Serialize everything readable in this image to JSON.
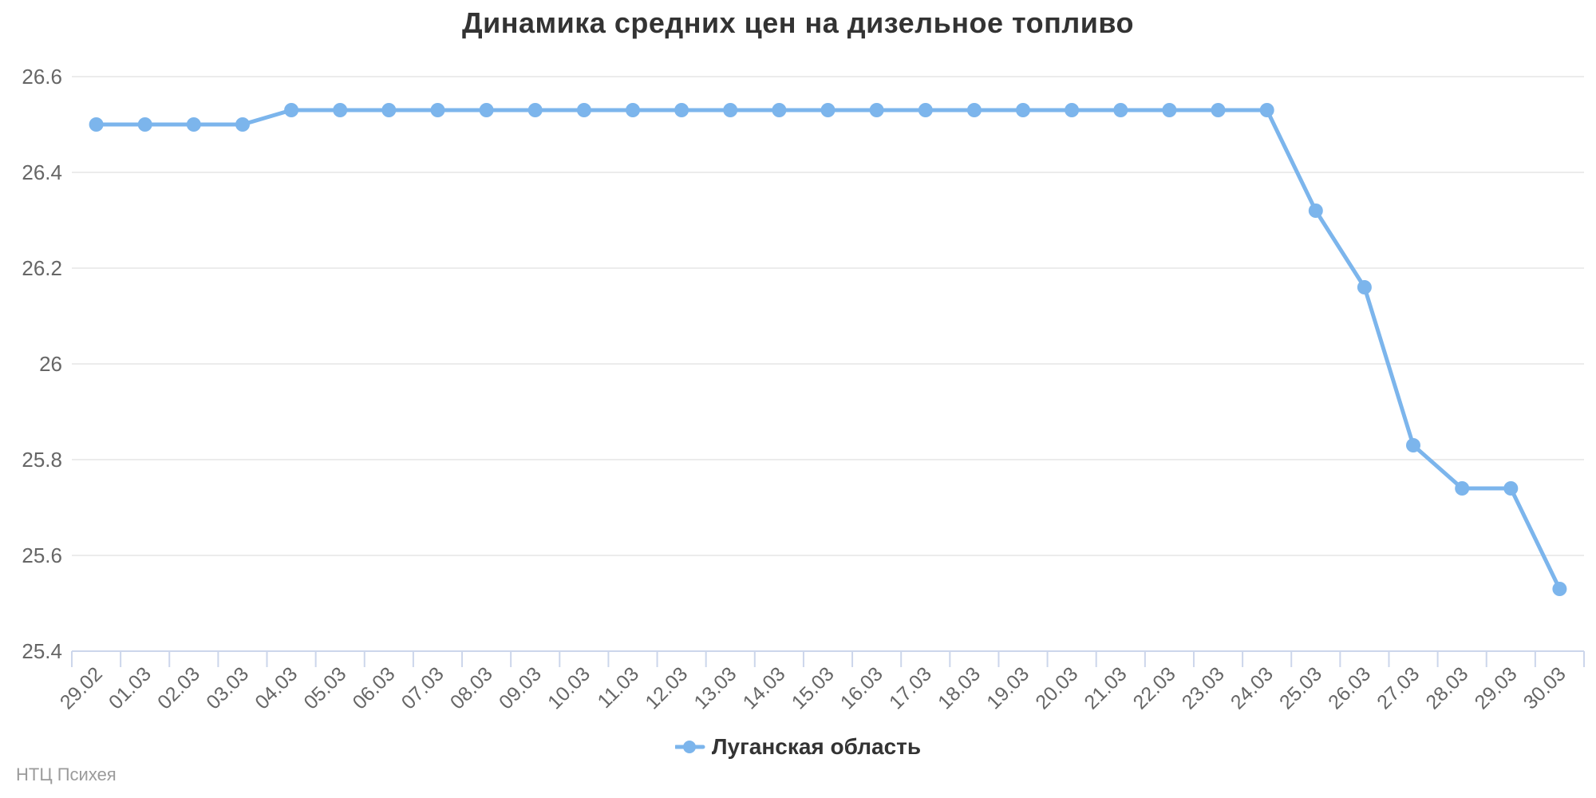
{
  "chart_data": {
    "type": "line",
    "title": "Динамика средних цен на дизельное топливо",
    "categories": [
      "29.02",
      "01.03",
      "02.03",
      "03.03",
      "04.03",
      "05.03",
      "06.03",
      "07.03",
      "08.03",
      "09.03",
      "10.03",
      "11.03",
      "12.03",
      "13.03",
      "14.03",
      "15.03",
      "16.03",
      "17.03",
      "18.03",
      "19.03",
      "20.03",
      "21.03",
      "22.03",
      "23.03",
      "24.03",
      "25.03",
      "26.03",
      "27.03",
      "28.03",
      "29.03",
      "30.03"
    ],
    "series": [
      {
        "name": "Луганская область",
        "color": "#7cb5ec",
        "values": [
          26.5,
          26.5,
          26.5,
          26.5,
          26.53,
          26.53,
          26.53,
          26.53,
          26.53,
          26.53,
          26.53,
          26.53,
          26.53,
          26.53,
          26.53,
          26.53,
          26.53,
          26.53,
          26.53,
          26.53,
          26.53,
          26.53,
          26.53,
          26.53,
          26.53,
          26.32,
          26.16,
          25.83,
          25.74,
          25.74,
          25.53
        ]
      }
    ],
    "ylim": [
      25.4,
      26.6
    ],
    "ytick_step": 0.2,
    "ytick_labels": [
      "25.4",
      "25.6",
      "25.8",
      "26",
      "26.2",
      "26.4",
      "26.6"
    ],
    "grid": true,
    "legend_position": "bottom-center",
    "credits": "НТЦ Психея"
  },
  "colors": {
    "series": "#7cb5ec",
    "grid": "#e6e6e6",
    "axis_line": "#ccd6eb",
    "title_text": "#333333",
    "axis_text": "#666666",
    "legend_text": "#333333",
    "credits_text": "#9b9b9b"
  }
}
